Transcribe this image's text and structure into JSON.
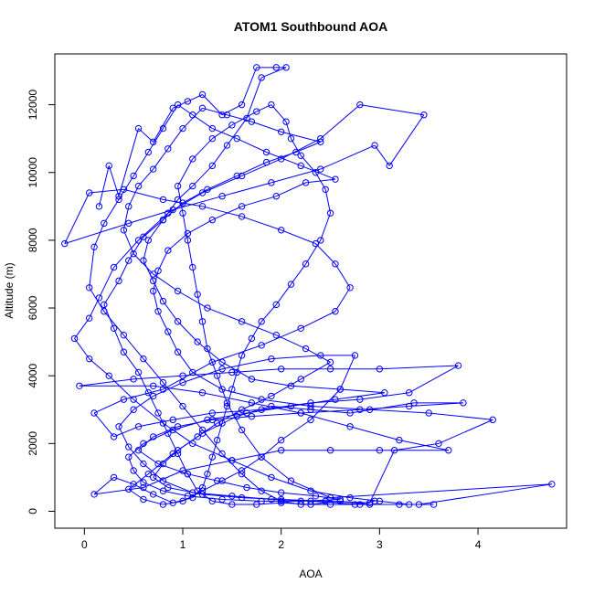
{
  "chart_data": {
    "type": "line",
    "title": "ATOM1 Southbound AOA",
    "xlabel": "AOA",
    "ylabel": "Altitude (m)",
    "xlim": [
      -0.3,
      4.9
    ],
    "ylim": [
      -500,
      13500
    ],
    "x_ticks": [
      0,
      1,
      2,
      3,
      4
    ],
    "y_ticks": [
      0,
      2000,
      4000,
      6000,
      8000,
      10000,
      12000
    ],
    "grid": false,
    "markers": "open-circle",
    "series": [
      {
        "color": "#0000ff",
        "points": [
          [
            0.15,
            9000
          ],
          [
            0.25,
            10200
          ],
          [
            0.35,
            9300
          ],
          [
            0.55,
            11300
          ],
          [
            0.7,
            10900
          ],
          [
            0.9,
            11900
          ],
          [
            1.05,
            12100
          ],
          [
            1.2,
            12300
          ],
          [
            1.4,
            11700
          ],
          [
            1.6,
            12000
          ],
          [
            1.75,
            13100
          ],
          [
            1.95,
            13100
          ],
          [
            2.05,
            13100
          ],
          [
            1.8,
            12800
          ],
          [
            1.65,
            11600
          ],
          [
            1.45,
            10800
          ],
          [
            1.3,
            10200
          ],
          [
            1.1,
            9600
          ],
          [
            0.95,
            9200
          ],
          [
            0.8,
            8600
          ],
          [
            0.6,
            8100
          ],
          [
            0.45,
            7400
          ],
          [
            0.35,
            6800
          ],
          [
            0.2,
            6100
          ],
          [
            0.3,
            5400
          ],
          [
            0.4,
            4700
          ],
          [
            0.55,
            4100
          ],
          [
            0.65,
            3500
          ],
          [
            0.75,
            2900
          ],
          [
            0.85,
            2300
          ],
          [
            0.95,
            1700
          ],
          [
            1.05,
            1100
          ],
          [
            1.15,
            600
          ],
          [
            1.3,
            300
          ],
          [
            1.5,
            200
          ],
          [
            1.75,
            200
          ],
          [
            2.0,
            250
          ],
          [
            2.3,
            200
          ],
          [
            2.6,
            300
          ],
          [
            2.9,
            200
          ],
          [
            3.2,
            200
          ],
          [
            3.4,
            200
          ],
          [
            4.75,
            800
          ],
          [
            2.5,
            400
          ],
          [
            2.1,
            900
          ],
          [
            1.8,
            1600
          ],
          [
            1.6,
            2400
          ],
          [
            1.45,
            3200
          ],
          [
            1.35,
            4000
          ],
          [
            1.25,
            4800
          ],
          [
            1.2,
            5600
          ],
          [
            1.15,
            6400
          ],
          [
            1.1,
            7200
          ],
          [
            1.05,
            8000
          ],
          [
            1.0,
            8800
          ],
          [
            0.95,
            9600
          ],
          [
            1.1,
            10400
          ],
          [
            1.3,
            11000
          ],
          [
            1.5,
            11400
          ],
          [
            1.75,
            11800
          ],
          [
            1.9,
            12000
          ],
          [
            2.05,
            11500
          ],
          [
            2.1,
            11000
          ],
          [
            2.2,
            10500
          ],
          [
            2.35,
            10000
          ],
          [
            2.45,
            9500
          ],
          [
            2.5,
            8800
          ],
          [
            2.4,
            8000
          ],
          [
            2.25,
            7300
          ],
          [
            2.1,
            6700
          ],
          [
            1.95,
            6100
          ],
          [
            1.8,
            5600
          ],
          [
            1.7,
            5100
          ],
          [
            1.6,
            4600
          ],
          [
            1.55,
            4100
          ],
          [
            1.5,
            3600
          ],
          [
            1.45,
            3100
          ],
          [
            1.4,
            2600
          ],
          [
            1.35,
            2100
          ],
          [
            1.3,
            1600
          ],
          [
            1.25,
            1100
          ],
          [
            1.2,
            700
          ],
          [
            1.1,
            400
          ],
          [
            0.9,
            250
          ],
          [
            0.7,
            500
          ],
          [
            0.5,
            800
          ],
          [
            0.3,
            1000
          ],
          [
            0.1,
            500
          ],
          [
            0.6,
            700
          ],
          [
            1.0,
            1200
          ],
          [
            1.5,
            1500
          ],
          [
            2.0,
            1800
          ],
          [
            2.5,
            1800
          ],
          [
            3.0,
            1800
          ],
          [
            3.7,
            1800
          ],
          [
            3.2,
            2100
          ],
          [
            2.7,
            2500
          ],
          [
            2.2,
            2900
          ],
          [
            1.7,
            3200
          ],
          [
            1.2,
            3500
          ],
          [
            0.7,
            3700
          ],
          [
            -0.05,
            3700
          ],
          [
            0.5,
            3900
          ],
          [
            1.0,
            4000
          ],
          [
            1.5,
            4100
          ],
          [
            2.0,
            4200
          ],
          [
            2.5,
            4200
          ],
          [
            3.0,
            4200
          ],
          [
            3.8,
            4300
          ],
          [
            3.3,
            3500
          ],
          [
            2.8,
            3300
          ],
          [
            2.3,
            3200
          ],
          [
            1.8,
            3000
          ],
          [
            1.3,
            2900
          ],
          [
            0.9,
            2700
          ],
          [
            0.55,
            2500
          ],
          [
            0.3,
            2200
          ],
          [
            0.1,
            2900
          ],
          [
            0.4,
            3300
          ],
          [
            0.8,
            3600
          ],
          [
            1.3,
            4400
          ],
          [
            1.8,
            4900
          ],
          [
            2.2,
            5400
          ],
          [
            2.55,
            5900
          ],
          [
            2.7,
            6600
          ],
          [
            2.55,
            7300
          ],
          [
            2.35,
            7900
          ],
          [
            2.0,
            8300
          ],
          [
            1.6,
            8700
          ],
          [
            1.2,
            9000
          ],
          [
            0.8,
            9200
          ],
          [
            0.4,
            9500
          ],
          [
            0.05,
            9400
          ],
          [
            -0.2,
            7900
          ],
          [
            0.45,
            8500
          ],
          [
            0.9,
            8900
          ],
          [
            1.4,
            9300
          ],
          [
            1.9,
            9700
          ],
          [
            2.4,
            10100
          ],
          [
            2.95,
            10800
          ],
          [
            3.1,
            10200
          ],
          [
            3.45,
            11700
          ],
          [
            2.8,
            12000
          ],
          [
            2.4,
            11000
          ],
          [
            2.0,
            10400
          ],
          [
            1.6,
            9900
          ],
          [
            1.2,
            9400
          ],
          [
            0.85,
            8800
          ],
          [
            0.55,
            8000
          ],
          [
            0.3,
            7200
          ],
          [
            0.15,
            6300
          ],
          [
            0.05,
            5700
          ],
          [
            -0.1,
            5100
          ],
          [
            0.05,
            4500
          ],
          [
            0.25,
            4000
          ],
          [
            0.5,
            3300
          ],
          [
            0.8,
            2600
          ],
          [
            1.1,
            2000
          ],
          [
            1.5,
            1500
          ],
          [
            1.9,
            1000
          ],
          [
            2.3,
            600
          ],
          [
            2.7,
            400
          ],
          [
            3.0,
            300
          ],
          [
            3.3,
            200
          ],
          [
            3.55,
            200
          ],
          [
            2.8,
            200
          ],
          [
            2.3,
            300
          ],
          [
            1.9,
            350
          ],
          [
            1.5,
            450
          ],
          [
            1.1,
            550
          ],
          [
            0.8,
            900
          ],
          [
            0.6,
            1400
          ],
          [
            0.45,
            1900
          ],
          [
            0.35,
            2500
          ],
          [
            0.5,
            3000
          ],
          [
            0.7,
            3400
          ],
          [
            1.0,
            3800
          ],
          [
            1.4,
            4200
          ],
          [
            1.9,
            4500
          ],
          [
            2.4,
            4600
          ],
          [
            2.75,
            4600
          ],
          [
            2.6,
            3600
          ],
          [
            2.3,
            2700
          ],
          [
            2.0,
            2100
          ],
          [
            1.8,
            1600
          ],
          [
            1.6,
            1200
          ],
          [
            1.4,
            900
          ],
          [
            1.2,
            600
          ],
          [
            1.0,
            300
          ],
          [
            0.8,
            200
          ],
          [
            0.6,
            350
          ],
          [
            0.45,
            650
          ],
          [
            0.65,
            1100
          ],
          [
            0.9,
            1700
          ],
          [
            1.2,
            2300
          ],
          [
            1.55,
            2800
          ],
          [
            1.9,
            3100
          ],
          [
            2.3,
            3000
          ],
          [
            2.7,
            2900
          ],
          [
            3.35,
            3200
          ],
          [
            3.85,
            3200
          ],
          [
            3.3,
            3100
          ],
          [
            2.8,
            3000
          ],
          [
            2.2,
            2900
          ],
          [
            1.7,
            2800
          ],
          [
            1.3,
            2700
          ],
          [
            0.95,
            2500
          ],
          [
            0.7,
            2200
          ],
          [
            0.55,
            1800
          ],
          [
            0.75,
            1400
          ],
          [
            1.05,
            1100
          ],
          [
            1.35,
            900
          ],
          [
            1.65,
            700
          ],
          [
            2.0,
            550
          ],
          [
            2.35,
            450
          ],
          [
            2.6,
            350
          ],
          [
            2.2,
            300
          ],
          [
            1.8,
            300
          ],
          [
            1.4,
            350
          ],
          [
            1.05,
            450
          ],
          [
            0.8,
            600
          ],
          [
            0.6,
            850
          ],
          [
            0.5,
            1200
          ],
          [
            0.45,
            1600
          ],
          [
            0.6,
            2000
          ],
          [
            0.9,
            2400
          ],
          [
            1.25,
            2700
          ],
          [
            1.65,
            2900
          ],
          [
            2.1,
            3100
          ],
          [
            2.55,
            3300
          ],
          [
            3.05,
            3500
          ],
          [
            2.6,
            3600
          ],
          [
            2.1,
            3700
          ],
          [
            1.7,
            3900
          ],
          [
            1.4,
            4400
          ],
          [
            1.15,
            5000
          ],
          [
            0.95,
            5600
          ],
          [
            0.8,
            6200
          ],
          [
            0.7,
            6800
          ],
          [
            0.6,
            7400
          ],
          [
            0.65,
            8000
          ],
          [
            0.8,
            8600
          ],
          [
            1.0,
            9100
          ],
          [
            1.25,
            9500
          ],
          [
            1.55,
            9900
          ],
          [
            1.85,
            10300
          ],
          [
            2.15,
            10600
          ],
          [
            2.4,
            10900
          ],
          [
            2.0,
            11200
          ],
          [
            1.7,
            11500
          ],
          [
            1.45,
            11700
          ],
          [
            1.2,
            11900
          ],
          [
            1.0,
            11300
          ],
          [
            0.85,
            10700
          ],
          [
            0.7,
            10100
          ],
          [
            0.55,
            9600
          ],
          [
            0.45,
            9000
          ],
          [
            0.4,
            8300
          ],
          [
            0.5,
            7600
          ],
          [
            0.7,
            7000
          ],
          [
            0.95,
            6500
          ],
          [
            1.25,
            6000
          ],
          [
            1.6,
            5600
          ],
          [
            1.95,
            5200
          ],
          [
            2.25,
            4800
          ],
          [
            2.5,
            4400
          ],
          [
            2.2,
            3900
          ],
          [
            1.9,
            3400
          ],
          [
            1.6,
            3000
          ],
          [
            1.35,
            2600
          ],
          [
            1.15,
            2200
          ],
          [
            0.95,
            1800
          ],
          [
            0.8,
            1400
          ],
          [
            0.7,
            1000
          ],
          [
            0.85,
            700
          ],
          [
            1.2,
            500
          ],
          [
            1.6,
            400
          ],
          [
            2.0,
            350
          ],
          [
            2.45,
            300
          ],
          [
            2.9,
            250
          ],
          [
            3.15,
            1800
          ],
          [
            3.6,
            2000
          ],
          [
            4.15,
            2700
          ],
          [
            3.5,
            2900
          ],
          [
            2.9,
            3000
          ],
          [
            2.3,
            3100
          ],
          [
            1.8,
            3300
          ],
          [
            1.4,
            3600
          ],
          [
            1.1,
            4100
          ],
          [
            0.95,
            4700
          ],
          [
            0.85,
            5300
          ],
          [
            0.75,
            5900
          ],
          [
            0.7,
            6500
          ],
          [
            0.75,
            7100
          ],
          [
            0.85,
            7700
          ],
          [
            1.05,
            8200
          ],
          [
            1.3,
            8600
          ],
          [
            1.6,
            9000
          ],
          [
            1.95,
            9300
          ],
          [
            2.25,
            9700
          ],
          [
            2.55,
            9800
          ],
          [
            2.2,
            10200
          ],
          [
            1.85,
            10600
          ],
          [
            1.55,
            11000
          ],
          [
            1.3,
            11300
          ],
          [
            1.1,
            11700
          ],
          [
            0.95,
            12000
          ],
          [
            0.8,
            11300
          ],
          [
            0.65,
            10600
          ],
          [
            0.5,
            9900
          ],
          [
            0.35,
            9200
          ],
          [
            0.2,
            8500
          ],
          [
            0.1,
            7800
          ],
          [
            0.05,
            6600
          ],
          [
            0.2,
            5900
          ],
          [
            0.4,
            5200
          ],
          [
            0.6,
            4500
          ],
          [
            0.8,
            3800
          ],
          [
            1.0,
            3100
          ],
          [
            1.2,
            2400
          ],
          [
            1.4,
            1700
          ],
          [
            1.6,
            1100
          ],
          [
            1.8,
            600
          ],
          [
            2.0,
            300
          ],
          [
            2.2,
            200
          ],
          [
            2.5,
            200
          ],
          [
            2.75,
            200
          ],
          [
            2.95,
            300
          ]
        ]
      }
    ]
  }
}
